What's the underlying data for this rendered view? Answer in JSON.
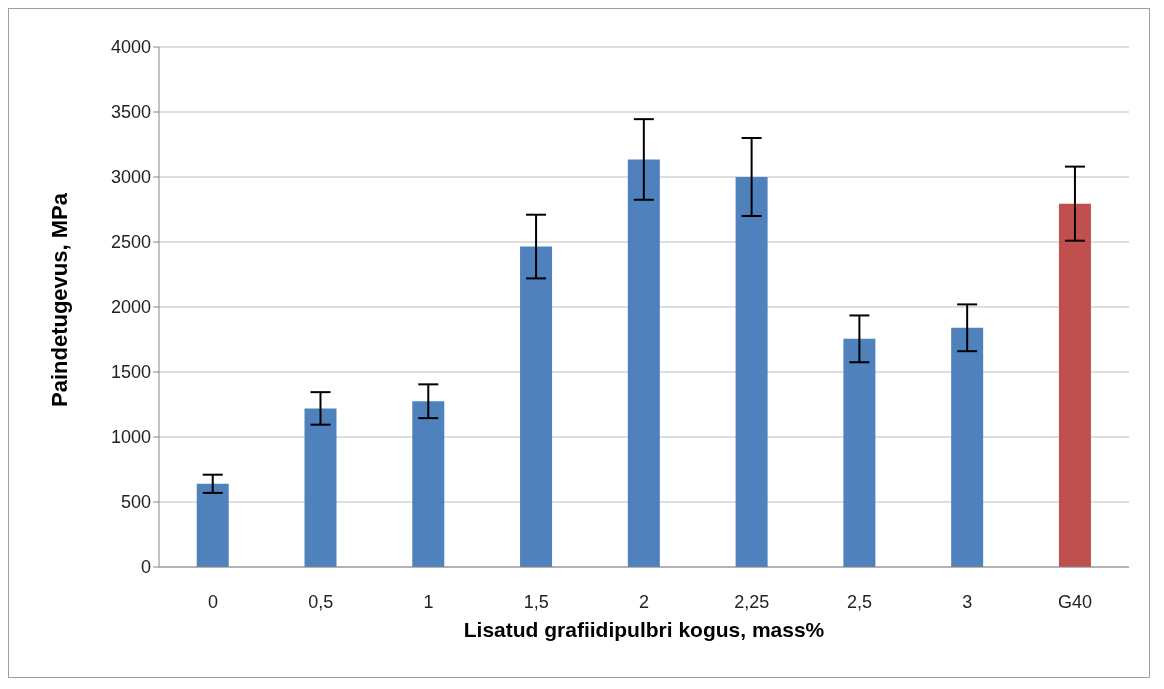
{
  "chart_data": {
    "type": "bar",
    "xlabel": "Lisatud grafiidipulbri kogus, mass%",
    "ylabel": "Paindetugevus, MPa",
    "categories": [
      "0",
      "0,5",
      "1",
      "1,5",
      "2",
      "2,25",
      "2,5",
      "3",
      "G40"
    ],
    "values": [
      640,
      1220,
      1275,
      2465,
      3135,
      3000,
      1755,
      1840,
      2795
    ],
    "errors": [
      70,
      125,
      130,
      245,
      310,
      300,
      180,
      180,
      285
    ],
    "colors": [
      "#4f81bd",
      "#4f81bd",
      "#4f81bd",
      "#4f81bd",
      "#4f81bd",
      "#4f81bd",
      "#4f81bd",
      "#4f81bd",
      "#c0504d"
    ],
    "ylim": [
      0,
      4000
    ],
    "yticks": [
      0,
      500,
      1000,
      1500,
      2000,
      2500,
      3000,
      3500,
      4000
    ],
    "grid": "y",
    "legend": false
  }
}
